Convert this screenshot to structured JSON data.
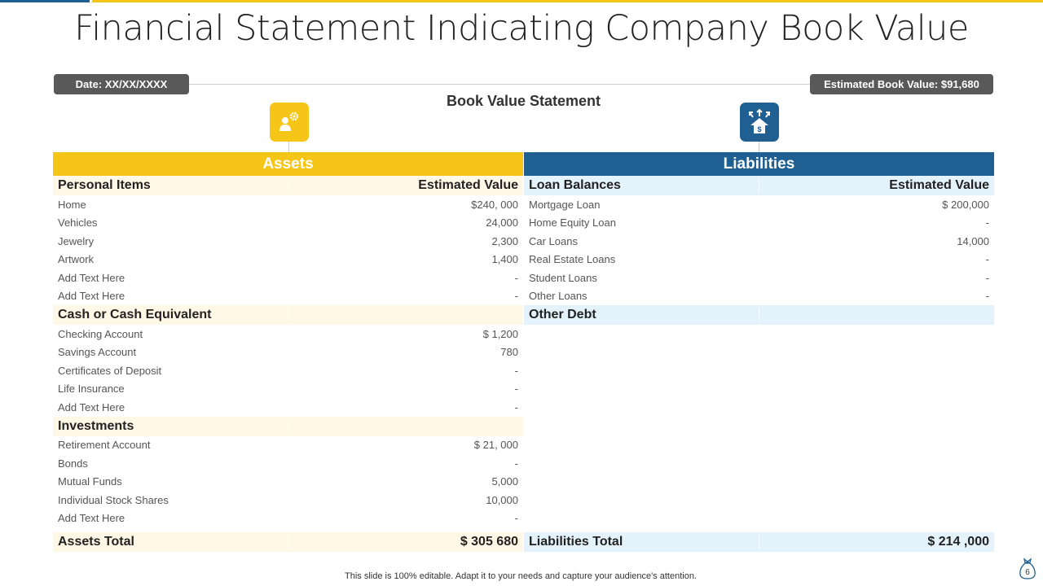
{
  "title": "Financial Statement Indicating Company Book Value",
  "date_label": "Date: XX/XX/XXXX",
  "book_value_label": "Estimated Book Value: $91,680",
  "subtitle": "Book Value Statement",
  "colors": {
    "yellow": "#f5c518",
    "blue": "#1f5f92"
  },
  "assets": {
    "header": "Assets",
    "sections": [
      {
        "title": "Personal Items",
        "value_header": "Estimated Value",
        "rows": [
          [
            "Home",
            "$240, 000"
          ],
          [
            "Vehicles",
            "24,000"
          ],
          [
            "Jewelry",
            "2,300"
          ],
          [
            "Artwork",
            "1,400"
          ],
          [
            "Add Text Here",
            "-"
          ],
          [
            "Add Text Here",
            "-"
          ]
        ]
      },
      {
        "title": "Cash or Cash Equivalent",
        "value_header": "",
        "rows": [
          [
            "Checking Account",
            "$ 1,200"
          ],
          [
            "Savings  Account",
            "780"
          ],
          [
            "Certificates of Deposit",
            "-"
          ],
          [
            "Life Insurance",
            "-"
          ],
          [
            "Add Text Here",
            "-"
          ]
        ]
      },
      {
        "title": "Investments",
        "value_header": "",
        "rows": [
          [
            "Retirement  Account",
            "$ 21, 000"
          ],
          [
            "Bonds",
            "-"
          ],
          [
            "Mutual Funds",
            "5,000"
          ],
          [
            "Individual  Stock Shares",
            "10,000"
          ],
          [
            "Add Text Here",
            "-"
          ]
        ]
      }
    ],
    "total_label": "Assets Total",
    "total_value": "$ 305 680"
  },
  "liabilities": {
    "header": "Liabilities",
    "sections": [
      {
        "title": "Loan Balances",
        "value_header": "Estimated Value",
        "rows": [
          [
            "Mortgage Loan",
            "$ 200,000"
          ],
          [
            "Home Equity Loan",
            "-"
          ],
          [
            "Car Loans",
            "14,000"
          ],
          [
            "Real Estate Loans",
            "-"
          ],
          [
            "Student Loans",
            "-"
          ],
          [
            "Other Loans",
            "-"
          ]
        ]
      },
      {
        "title": "Other Debt",
        "value_header": "",
        "rows": []
      }
    ],
    "total_label": "Liabilities  Total",
    "total_value": "$ 214 ,000"
  },
  "footer": "This slide is 100% editable. Adapt it to your needs and capture your audience's attention.",
  "page_number": "6"
}
